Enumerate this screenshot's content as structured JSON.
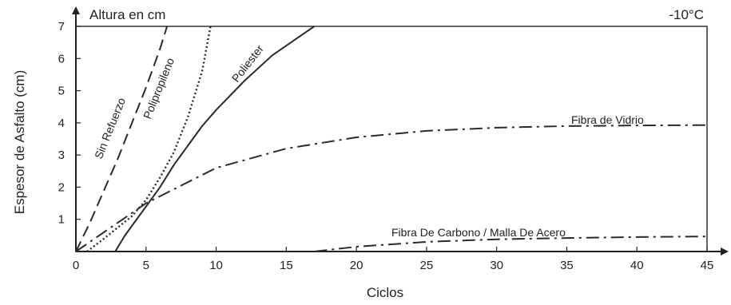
{
  "chart_data": {
    "type": "line",
    "title": "",
    "corner_label_left": "Altura en cm",
    "corner_label_right": "-10°C",
    "xlabel": "Ciclos",
    "ylabel": "Espesor de Asfalto (cm)",
    "xlim": [
      0,
      45
    ],
    "ylim": [
      0,
      7
    ],
    "xticks": [
      "0",
      "5",
      "10",
      "15",
      "20",
      "25",
      "30",
      "35",
      "40",
      "45"
    ],
    "yticks": [
      "1",
      "2",
      "3",
      "4",
      "5",
      "6",
      "7"
    ],
    "grid": false,
    "series": [
      {
        "name": "Sin Refuerzo",
        "style": "dashed",
        "color": "#2a2a2a",
        "x": [
          0,
          1,
          2,
          3,
          4,
          5,
          6,
          6.5
        ],
        "y": [
          0,
          0.9,
          1.9,
          2.9,
          4.0,
          5.1,
          6.3,
          7.0
        ]
      },
      {
        "name": "Polipropileno",
        "style": "dotted",
        "color": "#2a2a2a",
        "x": [
          0.8,
          2,
          4,
          5,
          6,
          7,
          8,
          9,
          9.6
        ],
        "y": [
          0,
          0.4,
          1.1,
          1.6,
          2.3,
          3.1,
          4.2,
          5.6,
          7.0
        ]
      },
      {
        "name": "Poliester",
        "style": "solid",
        "color": "#2a2a2a",
        "x": [
          2.8,
          3.5,
          5,
          6,
          7,
          8,
          9,
          10,
          12,
          14,
          16,
          17
        ],
        "y": [
          0,
          0.5,
          1.4,
          2.0,
          2.7,
          3.3,
          3.9,
          4.4,
          5.3,
          6.1,
          6.7,
          7.0
        ]
      },
      {
        "name": "Fibra de Vidrio",
        "style": "dashdot",
        "color": "#2a2a2a",
        "x": [
          0,
          5,
          10,
          15,
          20,
          25,
          30,
          35,
          40,
          45
        ],
        "y": [
          0,
          1.5,
          2.6,
          3.2,
          3.55,
          3.75,
          3.85,
          3.9,
          3.92,
          3.93
        ]
      },
      {
        "name": "Fibra De Carbono / Malla De Acero",
        "style": "dashdot",
        "color": "#2a2a2a",
        "x": [
          17,
          20,
          25,
          30,
          35,
          40,
          45
        ],
        "y": [
          0,
          0.15,
          0.3,
          0.38,
          0.42,
          0.45,
          0.47
        ]
      }
    ]
  }
}
